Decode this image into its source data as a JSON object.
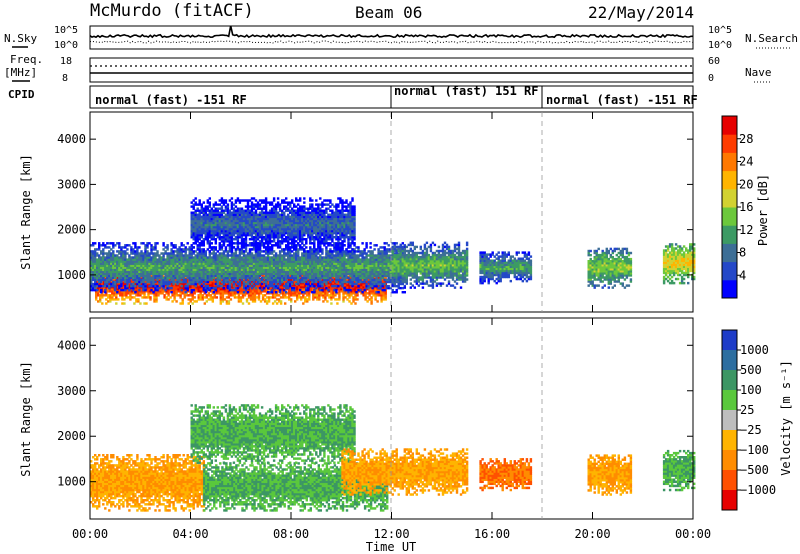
{
  "header": {
    "radar": "McMurdo (fitACF)",
    "beam": "Beam 06",
    "date": "22/May/2014"
  },
  "top_panels": {
    "nsky_label": "N.Sky",
    "nsky_ticks": [
      "10^5",
      "10^0"
    ],
    "nsearch_label": "N.Search",
    "freq_label_1": "Freq.",
    "freq_label_2": "[MHz]",
    "freq_ticks": [
      "18",
      "8"
    ],
    "nave_label": "Nave",
    "nave_ticks": [
      "60",
      "0"
    ],
    "cpid_label": "CPID",
    "cpid_segments": [
      {
        "label": "normal (fast) -151 RF",
        "start_hour": 0
      },
      {
        "label": "normal (fast) 151 RF",
        "start_hour": 12
      },
      {
        "label": "normal (fast) -151 RF",
        "start_hour": 18
      }
    ]
  },
  "chart_data": [
    {
      "type": "heatmap",
      "name": "power",
      "xlabel": "Time UT",
      "ylabel": "Slant Range [km]",
      "xlim": [
        0,
        24
      ],
      "ylim": [
        180,
        4600
      ],
      "x_ticks": [
        "00:00",
        "04:00",
        "08:00",
        "12:00",
        "16:00",
        "20:00",
        "00:00"
      ],
      "y_ticks": [
        1000,
        2000,
        3000,
        4000
      ],
      "colorbar": {
        "label": "Power [dB]",
        "ticks": [
          4,
          8,
          12,
          16,
          20,
          24,
          28
        ],
        "range": [
          0,
          32
        ],
        "colors": [
          "#0000ff",
          "#2448c8",
          "#3c6e96",
          "#3c9a64",
          "#6cc83c",
          "#d2d232",
          "#ffb400",
          "#ff7800",
          "#ff3c00",
          "#e60000"
        ]
      },
      "echo_regions": [
        {
          "t_start": 0.2,
          "t_end": 11.8,
          "range_low": 350,
          "range_high": 1200,
          "power_db": 30
        },
        {
          "t_start": 0.0,
          "t_end": 12.5,
          "range_low": 600,
          "range_high": 1700,
          "power_db": 12
        },
        {
          "t_start": 4.0,
          "t_end": 10.5,
          "range_low": 1500,
          "range_high": 2700,
          "power_db": 8
        },
        {
          "t_start": 12.0,
          "t_end": 15.0,
          "range_low": 700,
          "range_high": 1700,
          "power_db": 14
        },
        {
          "t_start": 15.5,
          "t_end": 17.5,
          "range_low": 800,
          "range_high": 1500,
          "power_db": 12
        },
        {
          "t_start": 19.8,
          "t_end": 21.5,
          "range_low": 700,
          "range_high": 1600,
          "power_db": 16
        },
        {
          "t_start": 22.8,
          "t_end": 24.0,
          "range_low": 800,
          "range_high": 1700,
          "power_db": 20
        }
      ]
    },
    {
      "type": "heatmap",
      "name": "velocity",
      "xlabel": "Time UT",
      "ylabel": "Slant Range [km]",
      "xlim": [
        0,
        24
      ],
      "ylim": [
        180,
        4600
      ],
      "x_ticks": [
        "00:00",
        "04:00",
        "08:00",
        "12:00",
        "16:00",
        "20:00",
        "00:00"
      ],
      "y_ticks": [
        1000,
        2000,
        3000,
        4000
      ],
      "colorbar": {
        "label": "Velocity [m s⁻¹]",
        "ticks": [
          "1000",
          "500",
          "100",
          "25",
          "−25",
          "−100",
          "−500",
          "−1000"
        ],
        "colors": [
          "#1e3cc8",
          "#2d6ea0",
          "#3c9664",
          "#5ac83c",
          "#bebebe",
          "#ffb400",
          "#ff8c00",
          "#ff5000",
          "#e60000"
        ]
      },
      "echo_regions": [
        {
          "t_start": 0.0,
          "t_end": 4.5,
          "range_low": 350,
          "range_high": 1600,
          "velocity": -100
        },
        {
          "t_start": 4.5,
          "t_end": 11.8,
          "range_low": 350,
          "range_high": 1400,
          "velocity": 100
        },
        {
          "t_start": 4.0,
          "t_end": 10.5,
          "range_low": 1400,
          "range_high": 2700,
          "velocity": 100
        },
        {
          "t_start": 10.0,
          "t_end": 15.0,
          "range_low": 700,
          "range_high": 1700,
          "velocity": -100
        },
        {
          "t_start": 15.5,
          "t_end": 17.5,
          "range_low": 800,
          "range_high": 1500,
          "velocity": -500
        },
        {
          "t_start": 19.8,
          "t_end": 21.5,
          "range_low": 700,
          "range_high": 1600,
          "velocity": -100
        },
        {
          "t_start": 22.8,
          "t_end": 24.0,
          "range_low": 800,
          "range_high": 1700,
          "velocity": 100
        }
      ]
    }
  ]
}
